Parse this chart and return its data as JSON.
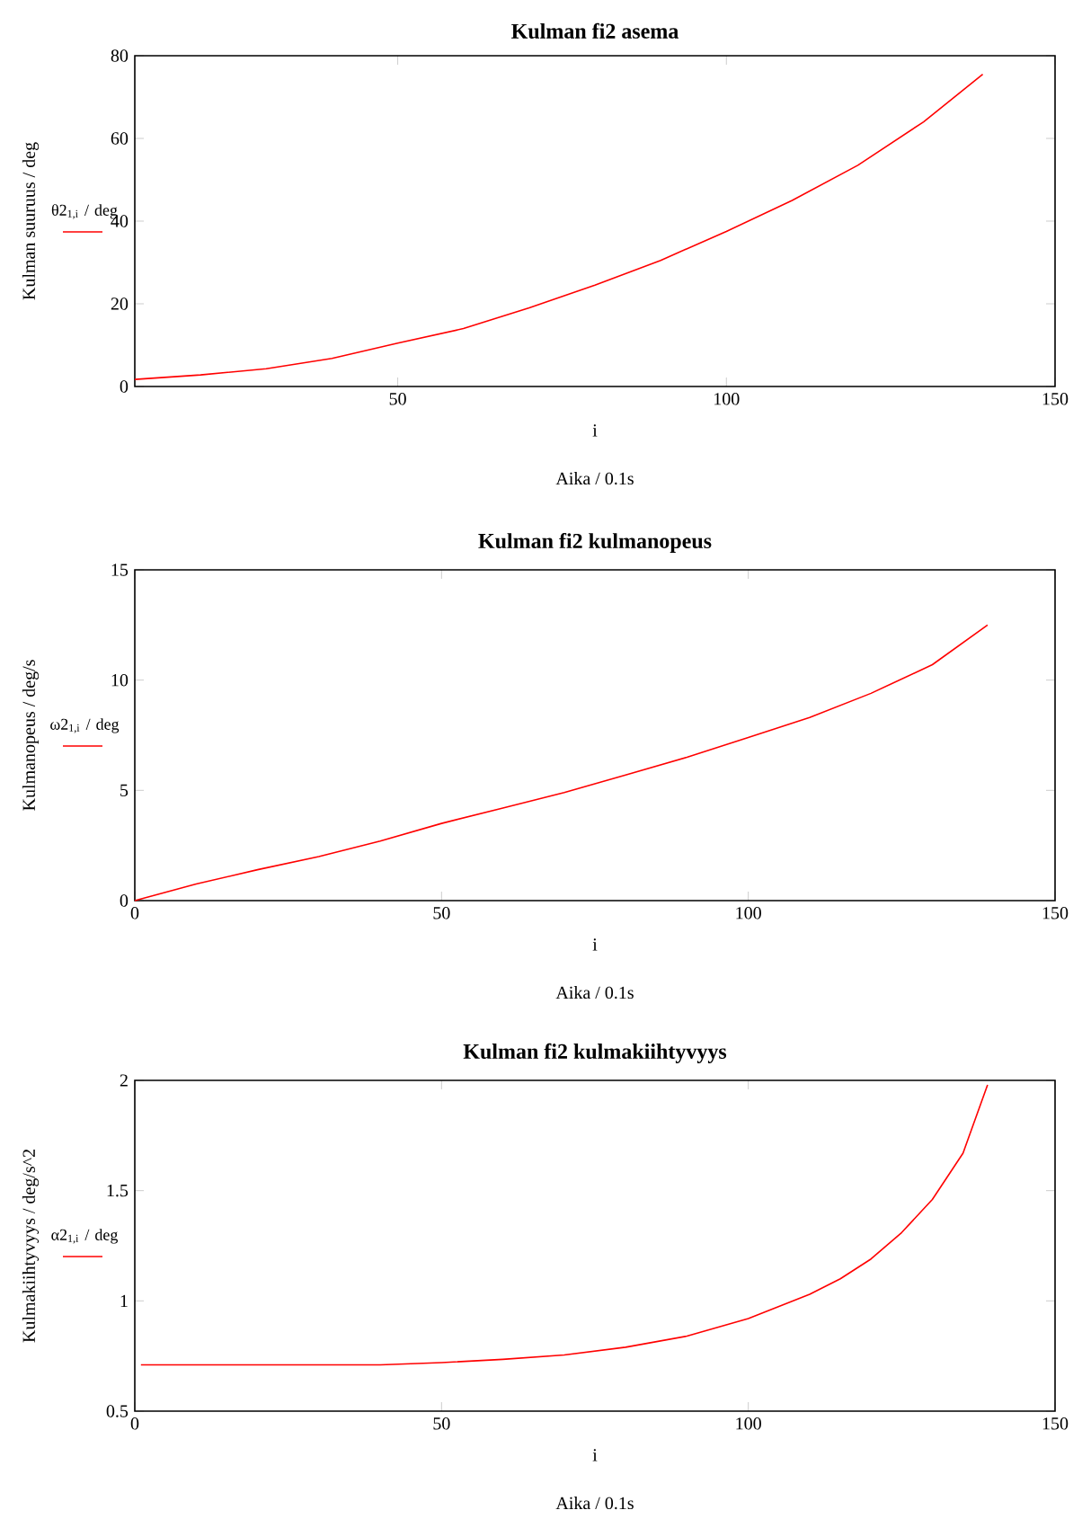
{
  "chart_data": [
    {
      "type": "line",
      "title": "Kulman fi2 asema",
      "xlabel": "i",
      "ylabel": "Kulman suuruus / deg",
      "annotations": [
        "Aika / 0.1s"
      ],
      "xlim": [
        10,
        150
      ],
      "xticks": [
        50,
        100,
        150
      ],
      "ylim": [
        0,
        80
      ],
      "yticks": [
        0,
        20,
        40,
        60,
        80
      ],
      "legend": "left",
      "grid": false,
      "series": [
        {
          "name": "θ2$_{1,i}$ / deg",
          "color": "#ff0000",
          "x": [
            10,
            20,
            30,
            40,
            50,
            60,
            70,
            80,
            90,
            100,
            110,
            120,
            130,
            139
          ],
          "values": [
            1.7,
            2.8,
            4.3,
            6.8,
            10.5,
            14,
            19,
            24.5,
            30.5,
            37.5,
            45,
            53.5,
            64,
            75.5
          ]
        }
      ]
    },
    {
      "type": "line",
      "title": "Kulman fi2 kulmanopeus",
      "xlabel": "i",
      "ylabel": "Kulmanopeus / deg/s",
      "annotations": [
        "Aika / 0.1s"
      ],
      "xlim": [
        0,
        150
      ],
      "xticks": [
        0,
        50,
        100,
        150
      ],
      "ylim": [
        0,
        15
      ],
      "yticks": [
        0,
        5,
        10,
        15
      ],
      "legend": "left",
      "grid": false,
      "series": [
        {
          "name": "ω2$_{1,i}$ / deg",
          "color": "#ff0000",
          "x": [
            0,
            10,
            20,
            30,
            40,
            50,
            60,
            70,
            80,
            90,
            100,
            110,
            120,
            130,
            139
          ],
          "values": [
            0,
            0.75,
            1.4,
            2.0,
            2.7,
            3.5,
            4.2,
            4.9,
            5.7,
            6.5,
            7.4,
            8.3,
            9.4,
            10.7,
            12.5
          ]
        }
      ]
    },
    {
      "type": "line",
      "title": "Kulman fi2 kulmakiihtyvyys",
      "xlabel": "i",
      "ylabel": "Kulmakiihtyvyys  / deg/s^2",
      "annotations": [
        "Aika / 0.1s"
      ],
      "xlim": [
        0,
        150
      ],
      "xticks": [
        0,
        50,
        100,
        150
      ],
      "ylim": [
        0.5,
        2
      ],
      "yticks": [
        0.5,
        1,
        1.5,
        2
      ],
      "legend": "left",
      "grid": false,
      "series": [
        {
          "name": "α2$_{1,i}$ / deg",
          "color": "#ff0000",
          "x": [
            1,
            10,
            20,
            30,
            40,
            50,
            60,
            70,
            80,
            90,
            100,
            110,
            115,
            120,
            125,
            130,
            135,
            139
          ],
          "values": [
            0.71,
            0.71,
            0.71,
            0.71,
            0.71,
            0.72,
            0.735,
            0.755,
            0.79,
            0.84,
            0.92,
            1.03,
            1.1,
            1.19,
            1.31,
            1.46,
            1.67,
            1.98
          ]
        }
      ]
    }
  ]
}
